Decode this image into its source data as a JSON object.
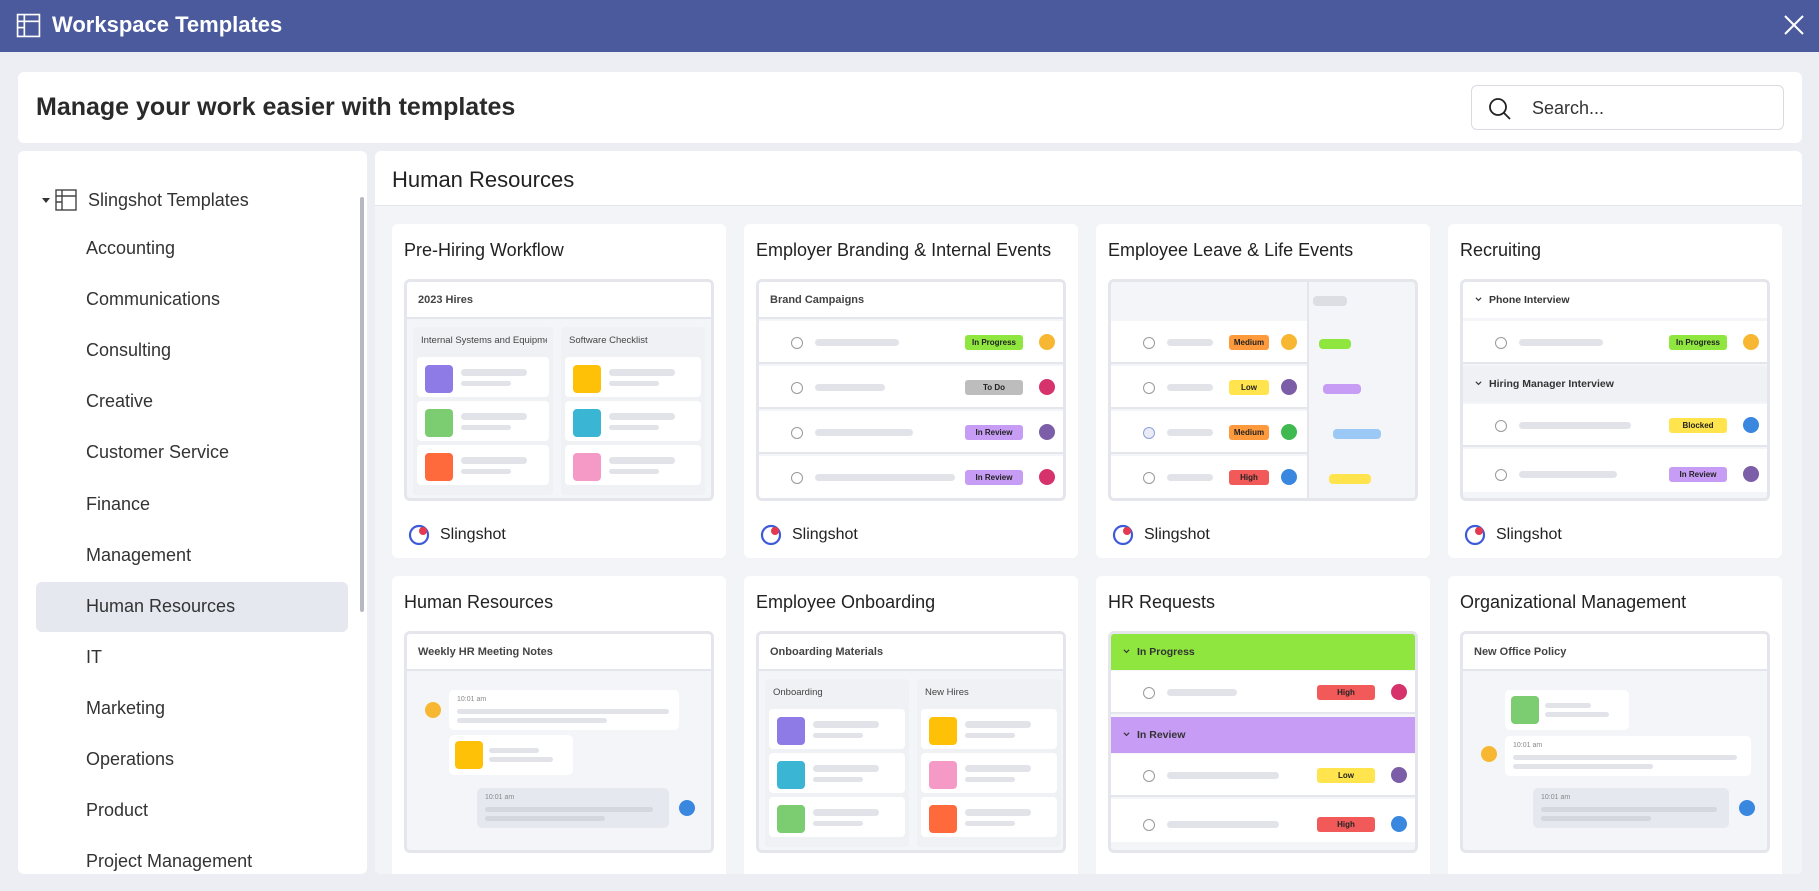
{
  "window": {
    "title": "Workspace Templates"
  },
  "header": {
    "title": "Manage your work easier with templates",
    "search_placeholder": "Search..."
  },
  "sidebar": {
    "root_label": "Slingshot Templates",
    "items": [
      {
        "label": "Accounting"
      },
      {
        "label": "Communications"
      },
      {
        "label": "Consulting"
      },
      {
        "label": "Creative"
      },
      {
        "label": "Customer Service"
      },
      {
        "label": "Finance"
      },
      {
        "label": "Management"
      },
      {
        "label": "Human Resources",
        "active": true
      },
      {
        "label": "IT"
      },
      {
        "label": "Marketing"
      },
      {
        "label": "Operations"
      },
      {
        "label": "Product"
      },
      {
        "label": "Project Management"
      }
    ]
  },
  "main": {
    "title": "Human Resources"
  },
  "cards": [
    {
      "title": "Pre-Hiring Workflow",
      "brand": "Slingshot",
      "preview_title": "2023 Hires",
      "col1": "Internal Systems and Equipme",
      "col2": "Software Checklist"
    },
    {
      "title": "Employer Branding & Internal Events",
      "brand": "Slingshot",
      "preview_title": "Brand Campaigns",
      "statuses": [
        "In Progress",
        "To Do",
        "In Review",
        "In Review"
      ]
    },
    {
      "title": "Employee Leave & Life Events",
      "brand": "Slingshot",
      "priorities": [
        "Medium",
        "Low",
        "Medium",
        "High"
      ]
    },
    {
      "title": "Recruiting",
      "brand": "Slingshot",
      "group1": "Phone Interview",
      "group2": "Hiring Manager Interview",
      "statuses": [
        "In Progress",
        "Blocked",
        "In Review"
      ]
    },
    {
      "title": "Human Resources",
      "preview_title": "Weekly HR Meeting Notes",
      "time1": "10:01 am",
      "time2": "10:01 am"
    },
    {
      "title": "Employee Onboarding",
      "preview_title": "Onboarding Materials",
      "col1": "Onboarding",
      "col2": "New Hires"
    },
    {
      "title": "HR Requests",
      "group1": "In Progress",
      "group2": "In Review",
      "priorities": [
        "High",
        "Low",
        "High"
      ]
    },
    {
      "title": "Organizational Management",
      "preview_title": "New Office Policy",
      "time1": "10:01 am",
      "time2": "10:01 am"
    }
  ],
  "colors": {
    "titlebar": "#4a5a9c",
    "in_progress": "#8ee63f",
    "to_do": "#bdbdbd",
    "in_review": "#c69cf4",
    "blocked": "#ffe44d",
    "medium": "#ff9a3c",
    "low": "#ffe44d",
    "high": "#f25a5a"
  }
}
